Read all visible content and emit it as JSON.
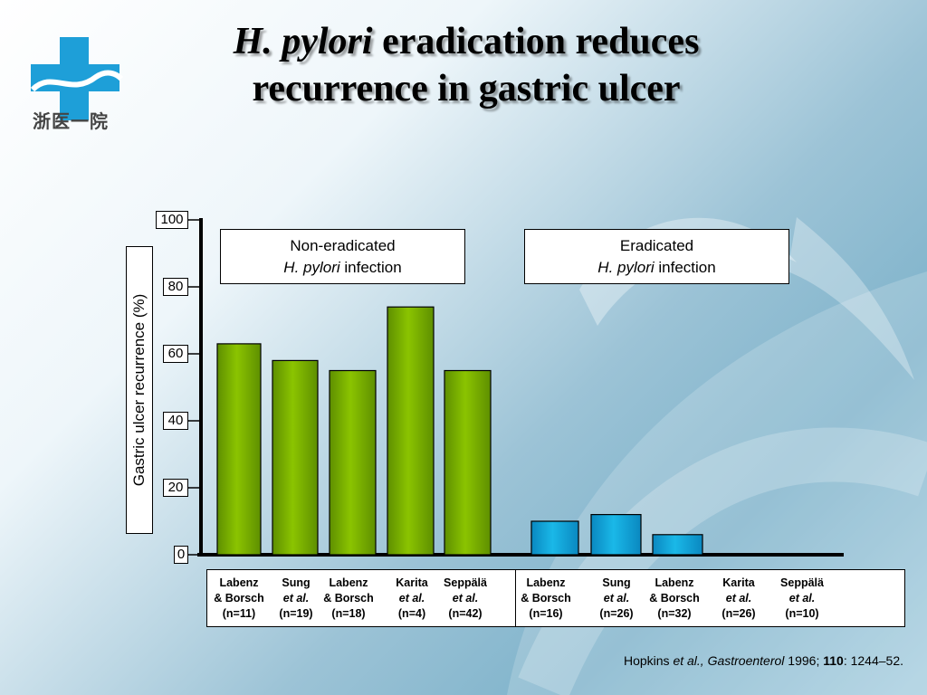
{
  "header": {
    "title_italic": "H. pylori",
    "title_rest_line1": " eradication reduces",
    "title_line2": "recurrence in gastric ulcer"
  },
  "logo": {
    "icon": "hospital-cross-icon",
    "text": "浙医一院"
  },
  "colors": {
    "non_eradicated": "#8bc400",
    "eradicated": "#1ab8e8",
    "bar_outline": "#000000"
  },
  "groups": {
    "non_eradicated": {
      "line1": "Non-eradicated",
      "line2_italic": "H. pylori",
      "line2_rest": " infection"
    },
    "eradicated": {
      "line1": "Eradicated",
      "line2_italic": "H. pylori",
      "line2_rest": " infection"
    }
  },
  "chart_data": {
    "type": "bar",
    "ylabel": "Gastric ulcer recurrence (%)",
    "ylim": [
      0,
      100
    ],
    "yticks": [
      "0",
      "20",
      "40",
      "60",
      "80",
      "100"
    ],
    "grid": false,
    "categories": [
      {
        "l1": "Labenz",
        "l2": "& Borsch",
        "l3": "(n=11)",
        "l2_italic": false
      },
      {
        "l1": "Sung",
        "l2": "et al.",
        "l3": "(n=19)",
        "l2_italic": true
      },
      {
        "l1": "Labenz",
        "l2": "& Borsch",
        "l3": "(n=18)",
        "l2_italic": false
      },
      {
        "l1": "Karita",
        "l2": "et al.",
        "l3": "(n=4)",
        "l2_italic": true
      },
      {
        "l1": "Seppälä",
        "l2": "et al.",
        "l3": "(n=42)",
        "l2_italic": true
      },
      {
        "l1": "Labenz",
        "l2": "& Borsch",
        "l3": "(n=16)",
        "l2_italic": false
      },
      {
        "l1": "Sung",
        "l2": "et al.",
        "l3": "(n=26)",
        "l2_italic": true
      },
      {
        "l1": "Labenz",
        "l2": "& Borsch",
        "l3": "(n=32)",
        "l2_italic": false
      },
      {
        "l1": "Karita",
        "l2": "et al.",
        "l3": "(n=26)",
        "l2_italic": true
      },
      {
        "l1": "Seppälä",
        "l2": "et al.",
        "l3": "(n=10)",
        "l2_italic": true
      }
    ],
    "series": [
      {
        "group": "non_eradicated",
        "values": [
          63,
          58,
          55,
          74,
          55,
          null,
          null,
          null,
          null,
          null
        ]
      },
      {
        "group": "eradicated",
        "values": [
          null,
          null,
          null,
          null,
          null,
          10,
          12,
          6,
          0,
          0
        ]
      }
    ]
  },
  "citation": {
    "prefix": "Hopkins ",
    "etal": "et al.,",
    "journal": " Gastroenterol",
    "year": " 1996; ",
    "volume": "110",
    "pages": ": 1244–52."
  }
}
